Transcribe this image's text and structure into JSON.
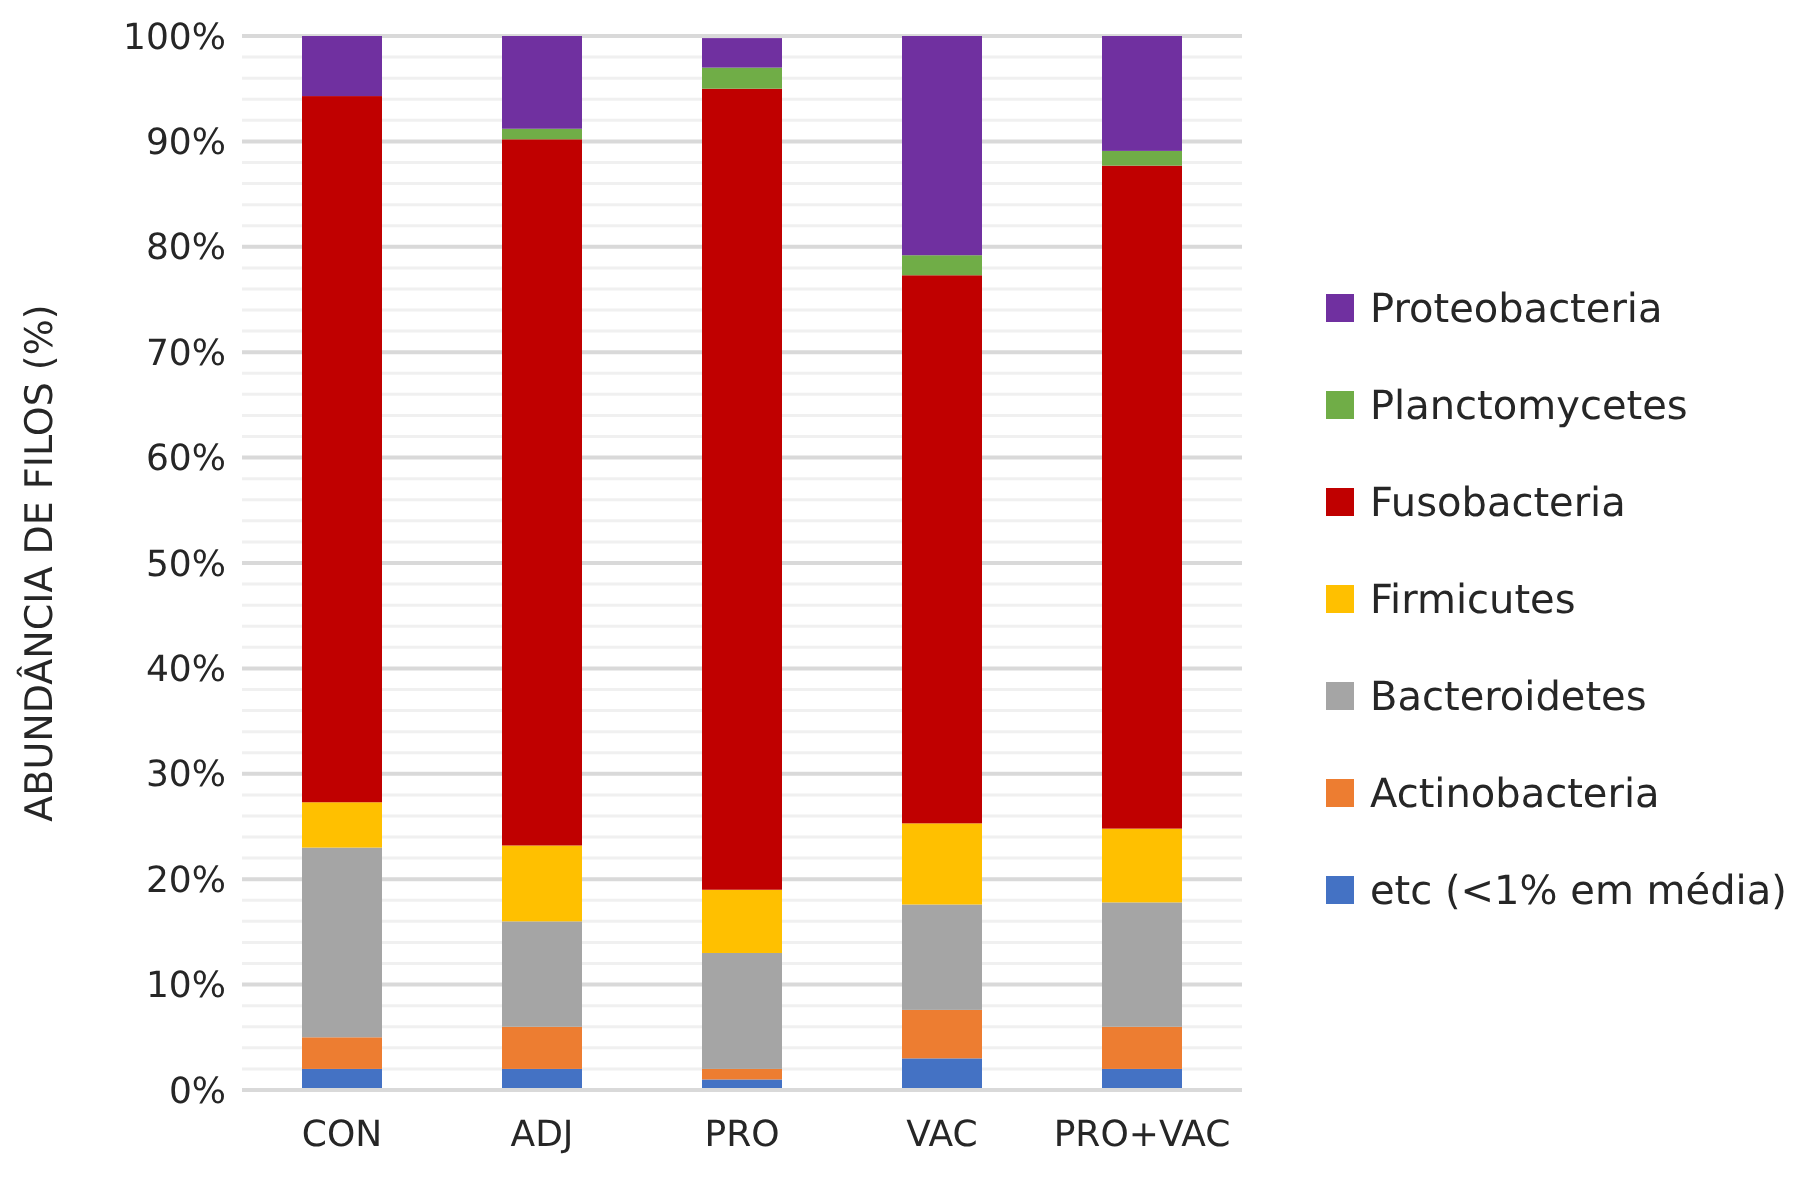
{
  "chart_data": {
    "type": "bar",
    "stacked": true,
    "ylabel": "ABUNDÂNCIA DE FILOS (%)",
    "categories": [
      "CON",
      "ADJ",
      "PRO",
      "VAC",
      "PRO+VAC"
    ],
    "series": [
      {
        "name": "etc (<1% em média)",
        "color": "#4472c4",
        "values": [
          2,
          2,
          1,
          3,
          2
        ]
      },
      {
        "name": "Actinobacteria",
        "color": "#ed7d31",
        "values": [
          3,
          4,
          1,
          4.6,
          4
        ]
      },
      {
        "name": "Bacteroidetes",
        "color": "#a5a5a5",
        "values": [
          18,
          10,
          11,
          10,
          11.8
        ]
      },
      {
        "name": "Firmicutes",
        "color": "#ffc000",
        "values": [
          4.3,
          7.2,
          6,
          7.7,
          7
        ]
      },
      {
        "name": "Fusobacteria",
        "color": "#c00000",
        "values": [
          67,
          67,
          76,
          52,
          62.9
        ]
      },
      {
        "name": "Planctomycetes",
        "color": "#70ad47",
        "values": [
          0,
          1,
          2,
          1.9,
          1.4
        ]
      },
      {
        "name": "Proteobacteria",
        "color": "#7030a0",
        "values": [
          5.7,
          8.8,
          2.8,
          20.8,
          10.9
        ]
      }
    ],
    "ylim": [
      0,
      100
    ],
    "yticks": [
      {
        "value": 0,
        "label": "0%"
      },
      {
        "value": 2,
        "label": null
      },
      {
        "value": 4,
        "label": null
      },
      {
        "value": 6,
        "label": null
      },
      {
        "value": 8,
        "label": null
      },
      {
        "value": 10,
        "label": "10%"
      },
      {
        "value": 12,
        "label": null
      },
      {
        "value": 14,
        "label": null
      },
      {
        "value": 16,
        "label": null
      },
      {
        "value": 18,
        "label": null
      },
      {
        "value": 20,
        "label": "20%"
      },
      {
        "value": 22,
        "label": null
      },
      {
        "value": 24,
        "label": null
      },
      {
        "value": 26,
        "label": null
      },
      {
        "value": 28,
        "label": null
      },
      {
        "value": 30,
        "label": "30%"
      },
      {
        "value": 32,
        "label": null
      },
      {
        "value": 34,
        "label": null
      },
      {
        "value": 36,
        "label": null
      },
      {
        "value": 38,
        "label": null
      },
      {
        "value": 40,
        "label": "40%"
      },
      {
        "value": 42,
        "label": null
      },
      {
        "value": 44,
        "label": null
      },
      {
        "value": 46,
        "label": null
      },
      {
        "value": 48,
        "label": null
      },
      {
        "value": 50,
        "label": "50%"
      },
      {
        "value": 52,
        "label": null
      },
      {
        "value": 54,
        "label": null
      },
      {
        "value": 56,
        "label": null
      },
      {
        "value": 58,
        "label": null
      },
      {
        "value": 60,
        "label": "60%"
      },
      {
        "value": 62,
        "label": null
      },
      {
        "value": 64,
        "label": null
      },
      {
        "value": 66,
        "label": null
      },
      {
        "value": 68,
        "label": null
      },
      {
        "value": 70,
        "label": "70%"
      },
      {
        "value": 72,
        "label": null
      },
      {
        "value": 74,
        "label": null
      },
      {
        "value": 76,
        "label": null
      },
      {
        "value": 78,
        "label": null
      },
      {
        "value": 80,
        "label": "80%"
      },
      {
        "value": 82,
        "label": null
      },
      {
        "value": 84,
        "label": null
      },
      {
        "value": 86,
        "label": null
      },
      {
        "value": 88,
        "label": null
      },
      {
        "value": 90,
        "label": "90%"
      },
      {
        "value": 92,
        "label": null
      },
      {
        "value": 94,
        "label": null
      },
      {
        "value": 96,
        "label": null
      },
      {
        "value": 98,
        "label": null
      },
      {
        "value": 100,
        "label": "100%"
      }
    ],
    "grid": "y",
    "legend": "right"
  }
}
